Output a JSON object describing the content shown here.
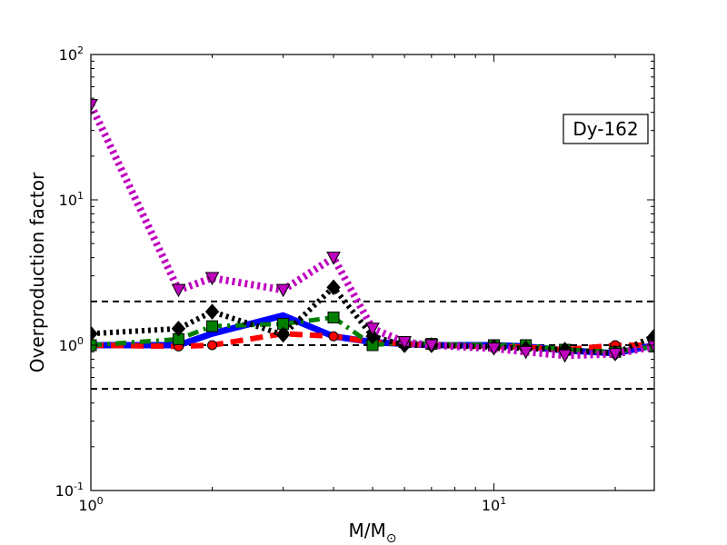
{
  "chart_data": {
    "type": "line",
    "title": "",
    "xlabel": "M/M",
    "xlabel_subscript": "⊙",
    "ylabel": "Overproduction factor",
    "annotation": "Dy-162",
    "legend_placement": "top-right",
    "xscale": "log",
    "yscale": "log",
    "xlim": [
      1,
      25
    ],
    "ylim": [
      0.1,
      100
    ],
    "grid": false,
    "xticks": [
      {
        "value": 1,
        "base": "10",
        "exp": "0"
      },
      {
        "value": 10,
        "base": "10",
        "exp": "1"
      }
    ],
    "yticks": [
      {
        "value": 0.1,
        "base": "10",
        "exp": "-1"
      },
      {
        "value": 1,
        "base": "10",
        "exp": "0"
      },
      {
        "value": 10,
        "base": "10",
        "exp": "1"
      },
      {
        "value": 100,
        "base": "10",
        "exp": "2"
      }
    ],
    "reference_lines": [
      0.5,
      1,
      2
    ],
    "series": [
      {
        "color": "#0000ff",
        "dash": "solid",
        "width": 7,
        "marker": "none",
        "x": [
          1,
          1.65,
          2,
          3,
          4,
          5,
          6,
          7,
          10,
          12,
          15,
          20,
          25
        ],
        "y": [
          1.0,
          1.0,
          1.2,
          1.6,
          1.15,
          1.05,
          1.02,
          1.0,
          1.0,
          0.98,
          0.92,
          0.88,
          1.0
        ]
      },
      {
        "color": "#ff0000",
        "dash": "dashed",
        "width": 6,
        "marker": "circle",
        "x": [
          1,
          1.65,
          2,
          3,
          4,
          5,
          6,
          7,
          10,
          12,
          15,
          20,
          25
        ],
        "y": [
          1.0,
          0.98,
          1.0,
          1.2,
          1.15,
          1.05,
          1.02,
          1.0,
          0.98,
          0.97,
          0.93,
          1.0,
          1.0
        ]
      },
      {
        "color": "#007f00",
        "dash": "dashdot",
        "width": 5,
        "marker": "square",
        "x": [
          1,
          1.65,
          2,
          3,
          4,
          5,
          6,
          7,
          10,
          12,
          15,
          20,
          25
        ],
        "y": [
          1.0,
          1.1,
          1.35,
          1.4,
          1.55,
          1.0,
          1.05,
          1.02,
          1.0,
          1.0,
          0.93,
          0.9,
          0.98
        ]
      },
      {
        "color": "#000000",
        "dash": "dotted",
        "width": 6,
        "marker": "diamond",
        "x": [
          1,
          1.65,
          2,
          3,
          4,
          5,
          6,
          7,
          10,
          12,
          15,
          20,
          25
        ],
        "y": [
          1.2,
          1.3,
          1.7,
          1.18,
          2.5,
          1.15,
          1.0,
          1.0,
          0.97,
          0.95,
          0.93,
          0.88,
          1.15
        ]
      },
      {
        "color": "#bf00bf",
        "dash": "dotted",
        "width": 8,
        "marker": "triangle-down",
        "x": [
          1,
          1.65,
          2,
          3,
          4,
          5,
          6,
          7,
          10,
          12,
          15,
          20,
          25
        ],
        "y": [
          45,
          2.4,
          2.9,
          2.4,
          4.0,
          1.3,
          1.05,
          1.0,
          0.95,
          0.9,
          0.85,
          0.87,
          0.98
        ]
      }
    ]
  }
}
